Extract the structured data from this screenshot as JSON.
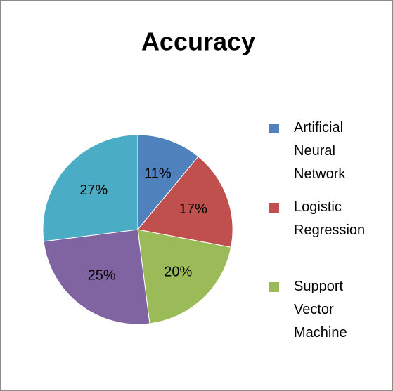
{
  "chart_data": {
    "type": "pie",
    "title": "Accuracy",
    "categories": [
      "Artificial Neural Network",
      "Logistic Regression",
      "Support Vector Machine",
      null,
      null
    ],
    "values": [
      11,
      17,
      20,
      25,
      27
    ],
    "value_labels": [
      "11%",
      "17%",
      "20%",
      "25%",
      "27%"
    ],
    "colors": [
      "#4f81bd",
      "#c0504d",
      "#9bbb59",
      "#8064a2",
      "#4bacc6"
    ],
    "legend": "right"
  }
}
